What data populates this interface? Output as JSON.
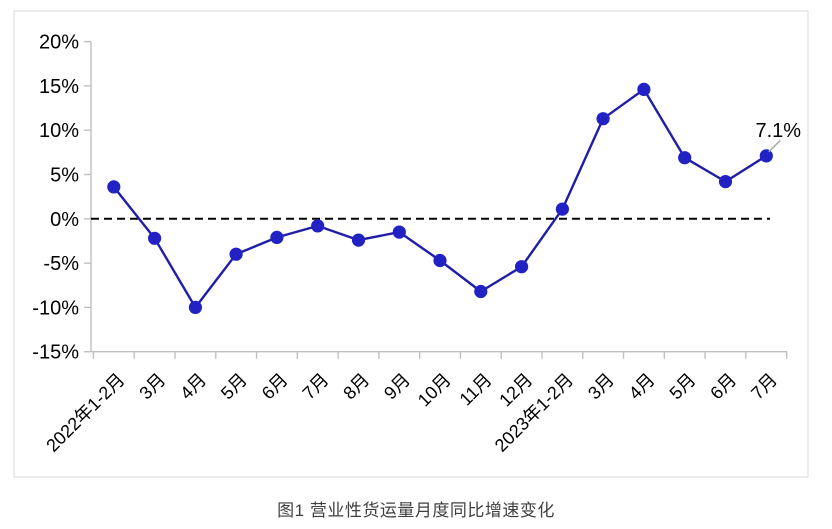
{
  "figure_caption": "图1 营业性货运量月度同比增速变化",
  "chart_data": {
    "type": "line",
    "title": "",
    "xlabel": "",
    "ylabel": "",
    "categories": [
      "2022年1-2月",
      "3月",
      "4月",
      "5月",
      "6月",
      "7月",
      "8月",
      "9月",
      "10月",
      "11月",
      "12月",
      "2023年1-2月",
      "3月",
      "4月",
      "5月",
      "6月",
      "7月"
    ],
    "values": [
      3.6,
      -2.2,
      -10.0,
      -4.0,
      -2.1,
      -0.8,
      -2.4,
      -1.5,
      -4.7,
      -8.2,
      -5.4,
      1.1,
      11.3,
      14.6,
      6.9,
      4.2,
      7.1
    ],
    "yticks": [
      "20%",
      "15%",
      "10%",
      "5%",
      "0%",
      "-5%",
      "-10%",
      "-15%"
    ],
    "ylim": [
      -15,
      20
    ],
    "y_unit": "%",
    "grid": "off",
    "legend_position": "none",
    "zero_reference_line": "dashed",
    "annotation": {
      "text": "7.1%",
      "category_index": 16
    },
    "colors": {
      "line": "#1e1ea8",
      "marker": "#2222c4",
      "axis": "#bfbfbf",
      "border": "#d9d9d9",
      "zero_line": "#000000",
      "annotation_leader": "#a6a6a6",
      "tick_text": "#000000",
      "caption_text": "#3f3f3f"
    }
  }
}
